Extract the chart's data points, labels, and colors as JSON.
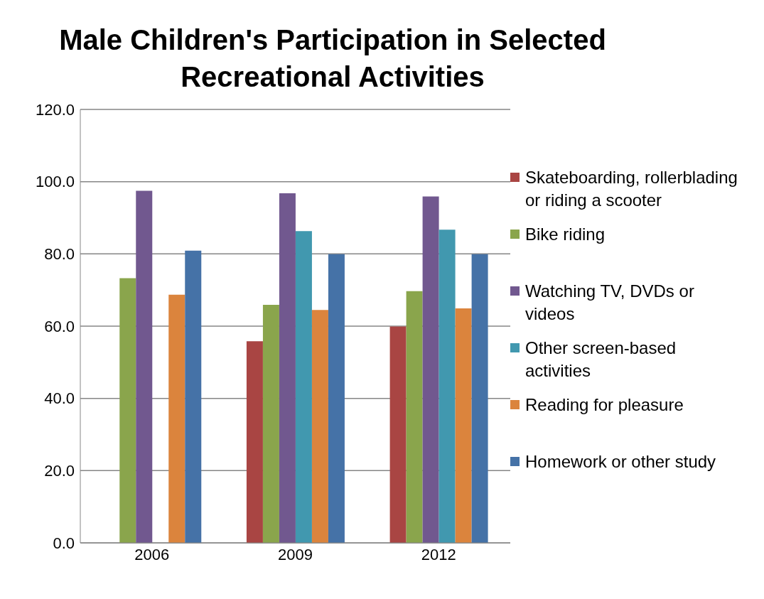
{
  "chart_data": {
    "type": "bar",
    "title": "Male Children's Participation in Selected Recreational Activities",
    "categories": [
      "2006",
      "2009",
      "2012"
    ],
    "series": [
      {
        "name": "Skateboarding, rollerblading or riding a scooter",
        "color": "#a94543",
        "values": [
          null,
          55.8,
          59.9
        ]
      },
      {
        "name": "Bike riding",
        "color": "#8aa54c",
        "values": [
          73.3,
          65.9,
          69.7
        ]
      },
      {
        "name": "Watching TV, DVDs or videos",
        "color": "#71588f",
        "values": [
          97.5,
          96.8,
          95.9
        ]
      },
      {
        "name": "Other screen-based activities",
        "color": "#4198af",
        "values": [
          null,
          86.3,
          86.7
        ]
      },
      {
        "name": "Reading for pleasure",
        "color": "#db843d",
        "values": [
          68.7,
          64.5,
          64.9
        ]
      },
      {
        "name": "Homework or other study",
        "color": "#4572a7",
        "values": [
          80.9,
          79.9,
          79.9
        ]
      }
    ],
    "ylim": [
      0,
      120
    ],
    "yticks": [
      {
        "value": 0,
        "label": "0.0"
      },
      {
        "value": 20,
        "label": "20.0"
      },
      {
        "value": 40,
        "label": "40.0"
      },
      {
        "value": 60,
        "label": "60.0"
      },
      {
        "value": 80,
        "label": "80.0"
      },
      {
        "value": 100,
        "label": "100.0"
      },
      {
        "value": 120,
        "label": "120.0"
      }
    ],
    "grid": "y",
    "legend": "right"
  }
}
